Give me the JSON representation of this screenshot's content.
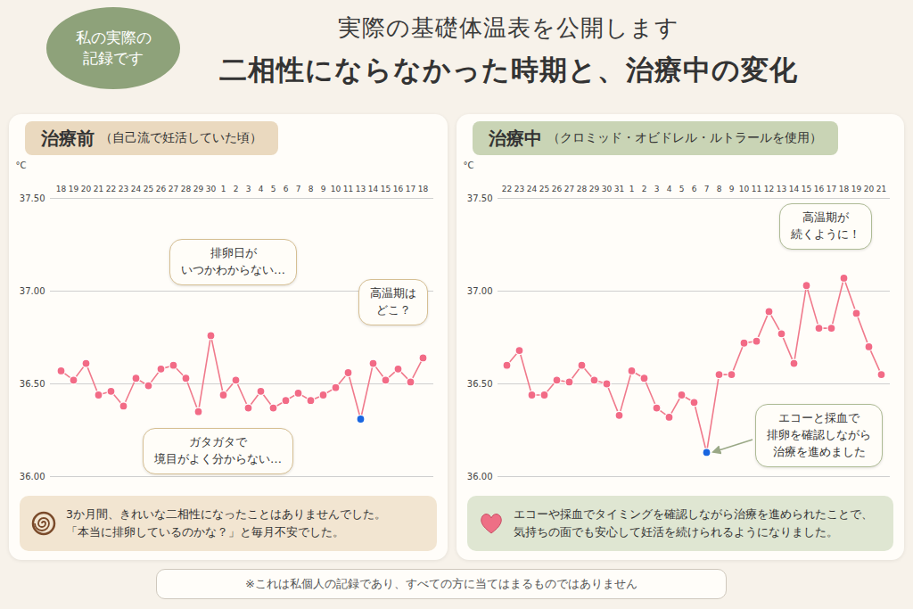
{
  "header": {
    "badge": "私の実際の記録です",
    "title": "実際の基礎体温表を公開します",
    "subtitle": "二相性にならなかった時期と、治療中の変化"
  },
  "chart_data": [
    {
      "type": "line",
      "title": "治療前",
      "subtitle": "（自己流で妊活していた頃）",
      "categories": [
        "18",
        "19",
        "20",
        "21",
        "22",
        "23",
        "24",
        "25",
        "26",
        "27",
        "28",
        "29",
        "30",
        "1",
        "2",
        "3",
        "4",
        "5",
        "6",
        "7",
        "8",
        "9",
        "10",
        "11",
        "13",
        "14",
        "15",
        "16",
        "17",
        "18"
      ],
      "values": [
        36.57,
        36.52,
        36.61,
        36.44,
        36.46,
        36.38,
        36.53,
        36.49,
        36.58,
        36.6,
        36.53,
        36.35,
        36.76,
        36.44,
        36.52,
        36.37,
        36.46,
        36.37,
        36.41,
        36.45,
        36.41,
        36.44,
        36.48,
        36.56,
        36.31,
        36.61,
        36.52,
        36.58,
        36.51,
        36.64
      ],
      "color": "#f07a8c",
      "colors": [
        "#f26b86",
        "#f26b86",
        "#f26b86",
        "#f26b86",
        "#f26b86",
        "#f26b86",
        "#f26b86",
        "#f26b86",
        "#f26b86",
        "#f26b86",
        "#f26b86",
        "#f26b86",
        "#f26b86",
        "#f26b86",
        "#f26b86",
        "#f26b86",
        "#f26b86",
        "#f26b86",
        "#f26b86",
        "#f26b86",
        "#f26b86",
        "#f26b86",
        "#f26b86",
        "#f26b86",
        "#1a66e0",
        "#f26b86",
        "#f26b86",
        "#f26b86",
        "#f26b86",
        "#f26b86"
      ],
      "marker": "circle",
      "ylabel": "°C",
      "ylim": [
        36.0,
        37.5
      ],
      "yticks": [
        {
          "value": 36.0,
          "label": "36.00"
        },
        {
          "value": 36.5,
          "label": "36.50"
        },
        {
          "value": 37.0,
          "label": "37.00"
        },
        {
          "value": 37.5,
          "label": "37.50"
        }
      ],
      "grid": true,
      "annotations": [
        "排卵日が\nいつかわからない…",
        "高温期は\nどこ？",
        "ガタガタで\n境目がよく分からない…"
      ],
      "note": [
        "3か月間、きれいな二相性になったことはありませんでした。",
        "「本当に排卵しているのかな？」と毎月不安でした。"
      ]
    },
    {
      "type": "line",
      "title": "治療中",
      "subtitle": "（クロミッド・オビドレル・ルトラールを使用）",
      "categories": [
        "22",
        "23",
        "24",
        "25",
        "26",
        "27",
        "28",
        "29",
        "30",
        "31",
        "1",
        "2",
        "3",
        "4",
        "5",
        "6",
        "7",
        "8",
        "9",
        "10",
        "11",
        "12",
        "13",
        "14",
        "15",
        "16",
        "17",
        "18",
        "19",
        "20",
        "21"
      ],
      "values": [
        36.6,
        36.68,
        36.44,
        36.44,
        36.52,
        36.51,
        36.6,
        36.52,
        36.5,
        36.33,
        36.57,
        36.53,
        36.37,
        36.32,
        36.44,
        36.4,
        36.13,
        36.55,
        36.55,
        36.72,
        36.73,
        36.89,
        36.77,
        36.61,
        37.03,
        36.8,
        36.8,
        37.07,
        36.88,
        36.7,
        36.55
      ],
      "color": "#f07a8c",
      "colors": [
        "#f26b86",
        "#f26b86",
        "#f26b86",
        "#f26b86",
        "#f26b86",
        "#f26b86",
        "#f26b86",
        "#f26b86",
        "#f26b86",
        "#f26b86",
        "#f26b86",
        "#f26b86",
        "#f26b86",
        "#f26b86",
        "#f26b86",
        "#f26b86",
        "#1a66e0",
        "#f26b86",
        "#f26b86",
        "#f26b86",
        "#f26b86",
        "#f26b86",
        "#f26b86",
        "#f26b86",
        "#f26b86",
        "#f26b86",
        "#f26b86",
        "#f26b86",
        "#f26b86",
        "#f26b86",
        "#f26b86"
      ],
      "marker": "circle",
      "ylabel": "°C",
      "ylim": [
        36.0,
        37.5
      ],
      "yticks": [
        {
          "value": 36.0,
          "label": "36.00"
        },
        {
          "value": 36.5,
          "label": "36.50"
        },
        {
          "value": 37.0,
          "label": "37.00"
        },
        {
          "value": 37.5,
          "label": "37.50"
        }
      ],
      "grid": true,
      "annotations": [
        "高温期が\n続くように！",
        "エコーと採血で\n排卵を確認しながら\n治療を進めました"
      ],
      "note": [
        "エコーや採血でタイミングを確認しながら治療を進められたことで、",
        "気持ちの面でも安心して妊活を続けられるようになりました。"
      ]
    }
  ],
  "footer": "※これは私個人の記録であり、すべての方に当てはまるものではありません"
}
